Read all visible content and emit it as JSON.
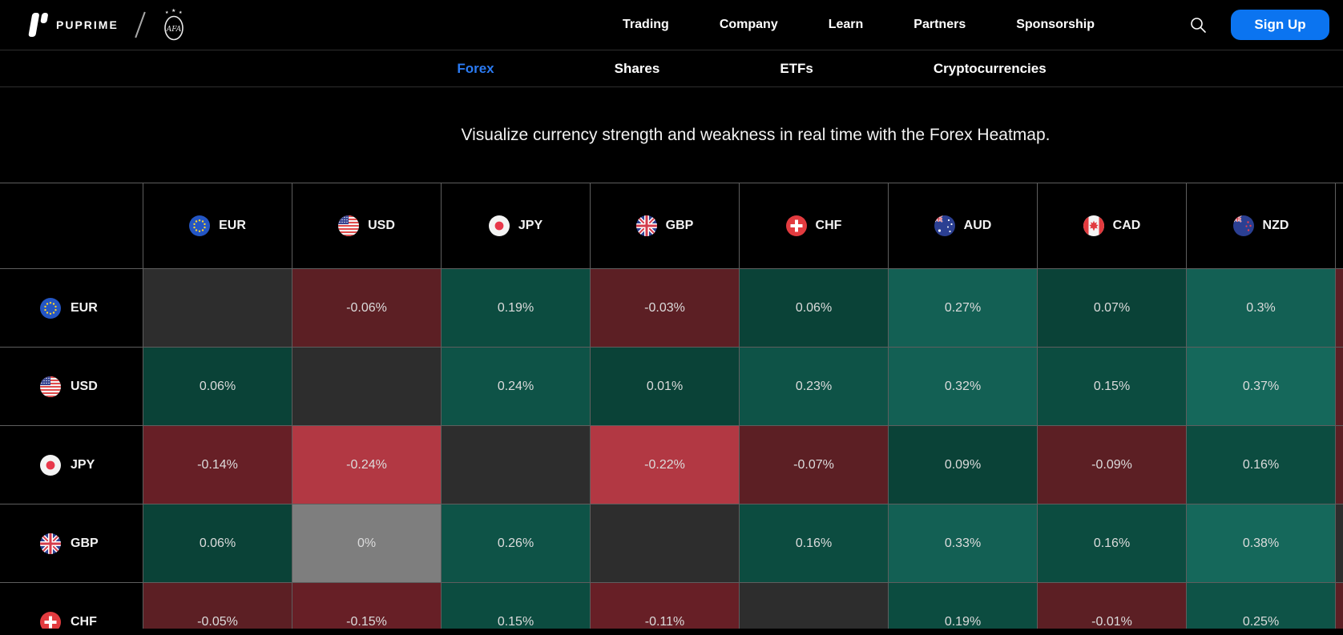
{
  "brand": {
    "name": "PUPRIME",
    "partner_logo": "afa-crest"
  },
  "nav": {
    "items": [
      {
        "label": "Trading"
      },
      {
        "label": "Company"
      },
      {
        "label": "Learn"
      },
      {
        "label": "Partners"
      },
      {
        "label": "Sponsorship"
      }
    ],
    "search_icon": "magnifier-icon",
    "signup": {
      "label": "Sign Up",
      "bg": "#0b74f0"
    }
  },
  "subnav": {
    "items": [
      {
        "label": "Forex",
        "active": true
      },
      {
        "label": "Shares",
        "active": false
      },
      {
        "label": "ETFs",
        "active": false
      },
      {
        "label": "Cryptocurrencies",
        "active": false
      }
    ],
    "active_color": "#2b7bf3"
  },
  "hero": {
    "text": "Visualize currency strength and weakness in real time with the Forex Heatmap."
  },
  "chart_data": {
    "type": "heatmap",
    "title": "Forex Heatmap",
    "columns": [
      "EUR",
      "USD",
      "JPY",
      "GBP",
      "CHF",
      "AUD",
      "CAD",
      "NZD"
    ],
    "rows": [
      "EUR",
      "USD",
      "JPY",
      "GBP",
      "CHF"
    ],
    "cells": [
      [
        "",
        "-0.06%",
        "0.19%",
        "-0.03%",
        "0.06%",
        "0.27%",
        "0.07%",
        "0.3%"
      ],
      [
        "0.06%",
        "",
        "0.24%",
        "0.01%",
        "0.23%",
        "0.32%",
        "0.15%",
        "0.37%"
      ],
      [
        "-0.14%",
        "-0.24%",
        "",
        "-0.22%",
        "-0.07%",
        "0.09%",
        "-0.09%",
        "0.16%"
      ],
      [
        "0.06%",
        "0%",
        "0.26%",
        "",
        "0.16%",
        "0.33%",
        "0.16%",
        "0.38%"
      ],
      [
        "-0.05%",
        "-0.15%",
        "0.15%",
        "-0.11%",
        "",
        "0.19%",
        "-0.01%",
        "0.25%"
      ]
    ],
    "palette": {
      "diagonal": "#2d2d2d",
      "zero": "#7e7e7e",
      "positive": [
        {
          "max": 0.1,
          "color": "#0a4237"
        },
        {
          "max": 0.2,
          "color": "#0c4c40"
        },
        {
          "max": 0.26,
          "color": "#0e5347"
        },
        {
          "max": 0.34,
          "color": "#136054"
        },
        {
          "max": 1.0,
          "color": "#15685b"
        }
      ],
      "negative": [
        {
          "max": 0.1,
          "color": "#5c1f24"
        },
        {
          "max": 0.16,
          "color": "#671f26"
        },
        {
          "max": 1.0,
          "color": "#b23843"
        }
      ],
      "cell_text": "#dcdcdc"
    },
    "clipped_column_colors": [
      "#5c1f24",
      "#5c1f24",
      "#5c1f24",
      "#2d2d2d",
      "#5c1f24"
    ],
    "flag_icons": [
      "eur-flag-icon",
      "usd-flag-icon",
      "jpy-flag-icon",
      "gbp-flag-icon",
      "chf-flag-icon",
      "aud-flag-icon",
      "cad-flag-icon",
      "nzd-flag-icon"
    ]
  }
}
